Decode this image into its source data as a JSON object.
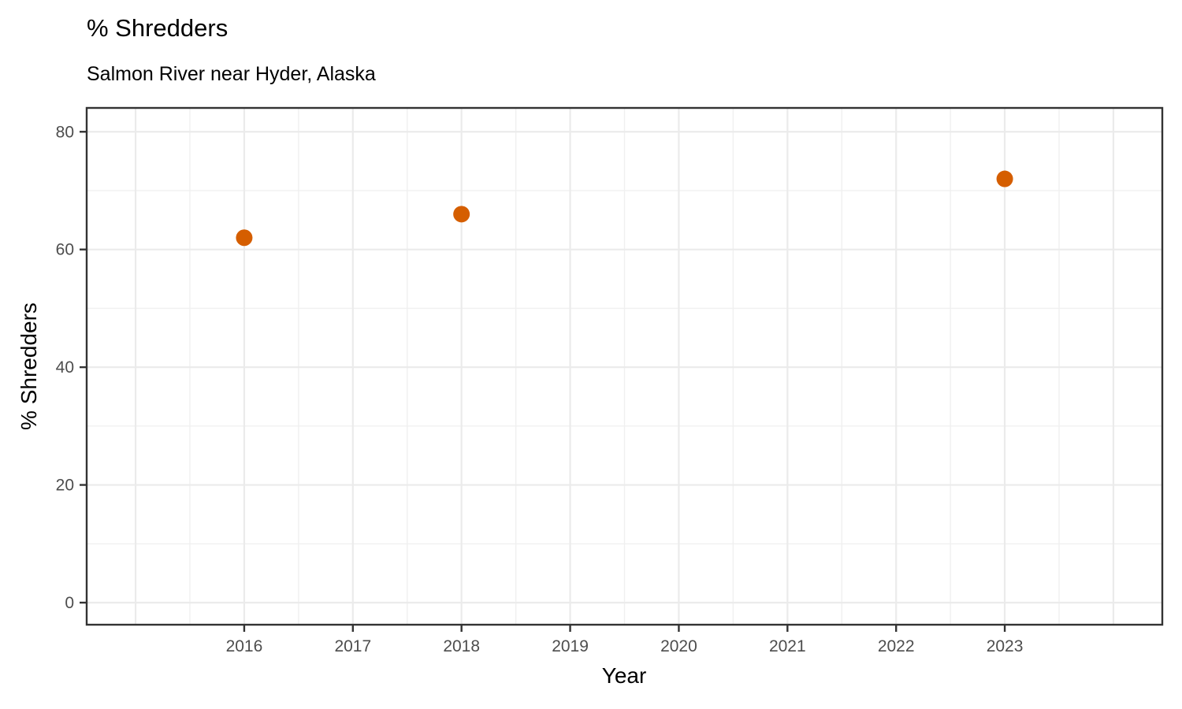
{
  "chart": {
    "title": "% Shredders",
    "subtitle": "Salmon River near Hyder, Alaska",
    "x_axis_title": "Year",
    "y_axis_title": "% Shredders"
  },
  "chart_data": {
    "type": "scatter",
    "title": "% Shredders",
    "subtitle": "Salmon River near Hyder, Alaska",
    "xlabel": "Year",
    "ylabel": "% Shredders",
    "points": [
      {
        "x": 2016,
        "y": 62
      },
      {
        "x": 2018,
        "y": 66
      },
      {
        "x": 2023,
        "y": 72
      }
    ],
    "xlim": [
      2014.55,
      2024.45
    ],
    "ylim": [
      -3.75,
      84.05
    ],
    "x_ticks": [
      2016,
      2017,
      2018,
      2019,
      2020,
      2021,
      2022,
      2023
    ],
    "x_tick_labels": [
      "2016",
      "2017",
      "2018",
      "2019",
      "2020",
      "2021",
      "2022",
      "2023"
    ],
    "y_ticks": [
      0,
      20,
      40,
      60,
      80
    ],
    "y_tick_labels": [
      "0",
      "20",
      "40",
      "60",
      "80"
    ],
    "x_grid_major": [
      2015,
      2016,
      2017,
      2018,
      2019,
      2020,
      2021,
      2022,
      2023,
      2024
    ],
    "x_grid_minor": [
      2015.5,
      2016.5,
      2017.5,
      2018.5,
      2019.5,
      2020.5,
      2021.5,
      2022.5,
      2023.5
    ],
    "y_grid_major": [
      0,
      20,
      40,
      60,
      80
    ],
    "y_grid_minor": [
      10,
      30,
      50,
      70
    ],
    "grid": true,
    "legend": "none",
    "style": {
      "point_color": "#D55E00",
      "point_radius": 10.5,
      "grid_major_color": "#EBEBEB",
      "grid_minor_color": "#F0F0F0",
      "panel_border_color": "#333333",
      "tick_color": "#333333",
      "tick_label_color": "#4D4D4D",
      "background": "#FFFFFF"
    }
  }
}
